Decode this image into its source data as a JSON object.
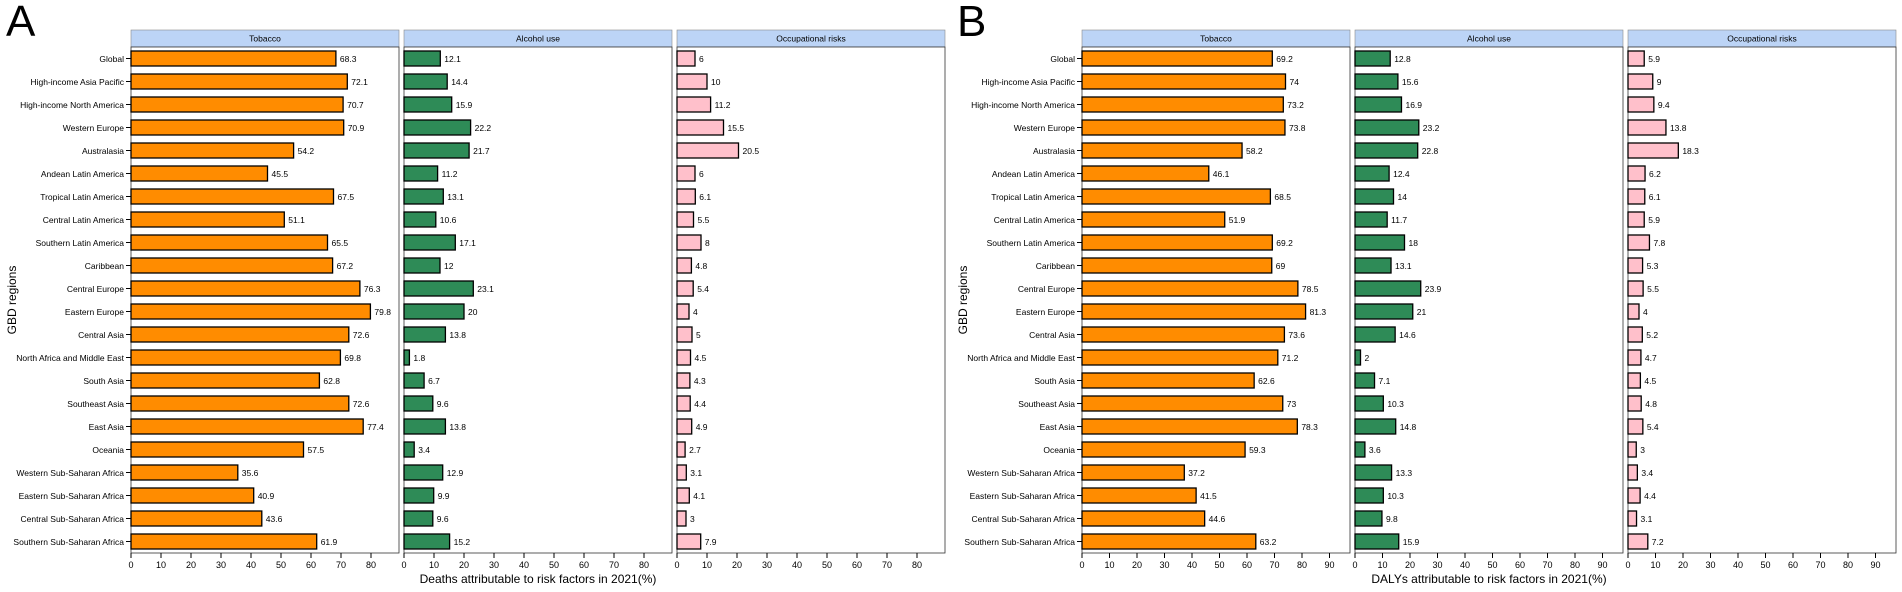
{
  "chart_data": [
    {
      "type": "bar",
      "orientation": "horizontal",
      "panel_label": "A",
      "ylabel": "GBD regions",
      "xlabel": "Deaths attributable to risk factors in 2021(%)",
      "xlim": [
        0,
        90
      ],
      "xticks": [
        0,
        10,
        20,
        30,
        40,
        50,
        60,
        70,
        80
      ],
      "categories": [
        "Global",
        "High-income Asia Pacific",
        "High-income North America",
        "Western Europe",
        "Australasia",
        "Andean Latin America",
        "Tropical Latin America",
        "Central Latin America",
        "Southern Latin America",
        "Caribbean",
        "Central Europe",
        "Eastern Europe",
        "Central Asia",
        "North Africa and Middle East",
        "South Asia",
        "Southeast Asia",
        "East Asia",
        "Oceania",
        "Western Sub-Saharan Africa",
        "Eastern Sub-Saharan Africa",
        "Central Sub-Saharan Africa",
        "Southern Sub-Saharan Africa"
      ],
      "series": [
        {
          "name": "Tobacco",
          "color": "#ff8c00",
          "values": [
            68.3,
            72.1,
            70.7,
            70.9,
            54.2,
            45.5,
            67.5,
            51.1,
            65.5,
            67.2,
            76.3,
            79.8,
            72.6,
            69.8,
            62.8,
            72.6,
            77.4,
            57.5,
            35.6,
            40.9,
            43.6,
            61.9
          ]
        },
        {
          "name": "Alcohol use",
          "color": "#2e8b57",
          "values": [
            12.1,
            14.4,
            15.9,
            22.2,
            21.7,
            11.2,
            13.1,
            10.6,
            17.1,
            12,
            23.1,
            20,
            13.8,
            1.8,
            6.7,
            9.6,
            13.8,
            3.4,
            12.9,
            9.9,
            9.6,
            15.2
          ]
        },
        {
          "name": "Occupational risks",
          "color": "#ffc0cb",
          "values": [
            6,
            10,
            11.2,
            15.5,
            20.5,
            6,
            6.1,
            5.5,
            8,
            4.8,
            5.4,
            4,
            5,
            4.5,
            4.3,
            4.4,
            4.9,
            2.7,
            3.1,
            4.1,
            3,
            7.9
          ]
        }
      ]
    },
    {
      "type": "bar",
      "orientation": "horizontal",
      "panel_label": "B",
      "ylabel": "GBD regions",
      "xlabel": "DALYs attributable to risk factors in 2021(%)",
      "xlim": [
        0,
        95
      ],
      "xticks": [
        0,
        10,
        20,
        30,
        40,
        50,
        60,
        70,
        80,
        90
      ],
      "categories": [
        "Global",
        "High-income Asia Pacific",
        "High-income North America",
        "Western Europe",
        "Australasia",
        "Andean Latin America",
        "Tropical Latin America",
        "Central Latin America",
        "Southern Latin America",
        "Caribbean",
        "Central Europe",
        "Eastern Europe",
        "Central Asia",
        "North Africa and Middle East",
        "South Asia",
        "Southeast Asia",
        "East Asia",
        "Oceania",
        "Western Sub-Saharan Africa",
        "Eastern Sub-Saharan Africa",
        "Central Sub-Saharan Africa",
        "Southern Sub-Saharan Africa"
      ],
      "series": [
        {
          "name": "Tobacco",
          "color": "#ff8c00",
          "values": [
            69.2,
            74,
            73.2,
            73.8,
            58.2,
            46.1,
            68.5,
            51.9,
            69.2,
            69,
            78.5,
            81.3,
            73.6,
            71.2,
            62.6,
            73,
            78.3,
            59.3,
            37.2,
            41.5,
            44.6,
            63.2
          ]
        },
        {
          "name": "Alcohol use",
          "color": "#2e8b57",
          "values": [
            12.8,
            15.6,
            16.9,
            23.2,
            22.8,
            12.4,
            14,
            11.7,
            18,
            13.1,
            23.9,
            21,
            14.6,
            2,
            7.1,
            10.3,
            14.8,
            3.6,
            13.3,
            10.3,
            9.8,
            15.9
          ]
        },
        {
          "name": "Occupational risks",
          "color": "#ffc0cb",
          "values": [
            5.9,
            9,
            9.4,
            13.8,
            18.3,
            6.2,
            6.1,
            5.9,
            7.8,
            5.3,
            5.5,
            4,
            5.2,
            4.7,
            4.5,
            4.8,
            5.4,
            3,
            3.4,
            4.4,
            3.1,
            7.2
          ]
        }
      ]
    }
  ],
  "colors": {
    "header_fill": "#bcd4f6",
    "bar_stroke": "#000000"
  }
}
